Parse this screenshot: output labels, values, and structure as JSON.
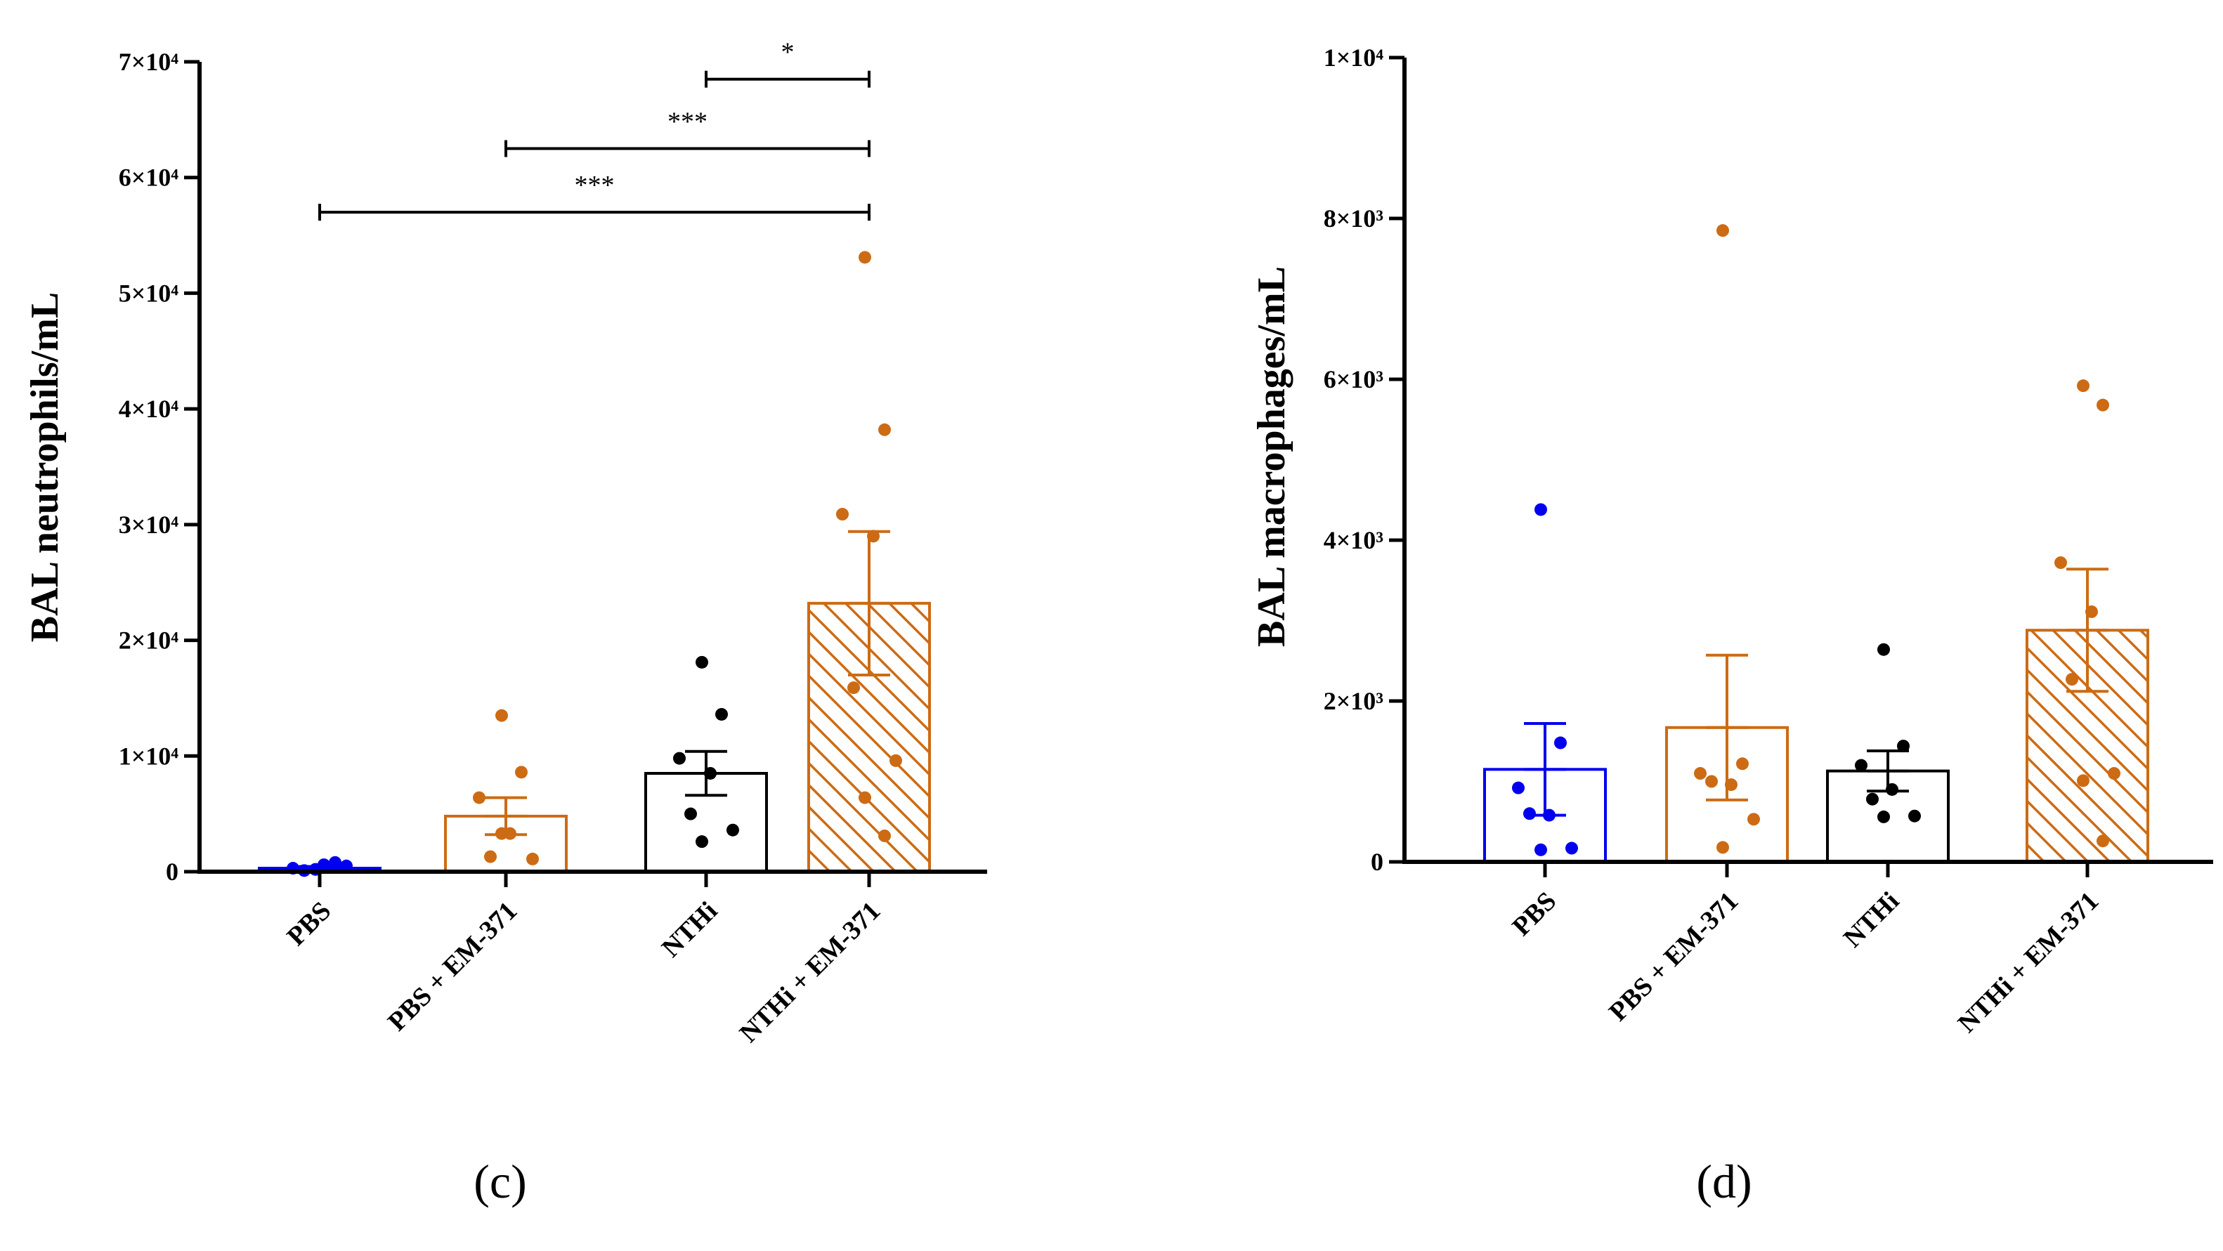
{
  "colors": {
    "blue": "#0000ee",
    "orange": "#cc6b14",
    "black": "#000000"
  },
  "chart_data": [
    {
      "type": "bar",
      "panel": "(c)",
      "ylabel": "BAL neutrophils/mL",
      "ylim": [
        0,
        70000
      ],
      "yticks": [
        {
          "value": 0,
          "label": "0"
        },
        {
          "value": 10000,
          "label": "1×10⁴"
        },
        {
          "value": 20000,
          "label": "2×10⁴"
        },
        {
          "value": 30000,
          "label": "3×10⁴"
        },
        {
          "value": 40000,
          "label": "4×10⁴"
        },
        {
          "value": 50000,
          "label": "5×10⁴"
        },
        {
          "value": 60000,
          "label": "6×10⁴"
        },
        {
          "value": 70000,
          "label": "7×10⁴"
        }
      ],
      "categories": [
        "PBS",
        "PBS + EM-371",
        "NTHi",
        "NTHi + EM-371"
      ],
      "means": [
        300,
        4800,
        8500,
        23200
      ],
      "sem": [
        150,
        1600,
        1900,
        6200
      ],
      "bar_colors": [
        "#0000ee",
        "#cc6b14",
        "#000000",
        "#cc6b14"
      ],
      "bar_patterns": [
        "none",
        "none",
        "none",
        "hatch"
      ],
      "points": [
        [
          200,
          800,
          300,
          600,
          100,
          500,
          200
        ],
        [
          13500,
          8600,
          6400,
          3300,
          1300,
          1100,
          3300
        ],
        [
          18100,
          13600,
          9800,
          8500,
          5000,
          3600,
          2600
        ],
        [
          53100,
          38200,
          30900,
          29000,
          15900,
          9600,
          6400,
          3100
        ]
      ],
      "significance": [
        {
          "from": 2,
          "to": 3,
          "label": "*",
          "y": 68500
        },
        {
          "from": 1,
          "to": 3,
          "label": "***",
          "y": 62500
        },
        {
          "from": 0,
          "to": 3,
          "label": "***",
          "y": 57000
        }
      ]
    },
    {
      "type": "bar",
      "panel": "(d)",
      "ylabel": "BAL macrophages/mL",
      "ylim": [
        0,
        10000
      ],
      "yticks": [
        {
          "value": 0,
          "label": "0"
        },
        {
          "value": 2000,
          "label": "2×10³"
        },
        {
          "value": 4000,
          "label": "4×10³"
        },
        {
          "value": 6000,
          "label": "6×10³"
        },
        {
          "value": 8000,
          "label": "8×10³"
        },
        {
          "value": 10000,
          "label": "1×10⁴"
        }
      ],
      "categories": [
        "PBS",
        "PBS + EM-371",
        "NTHi",
        "NTHi + EM-371"
      ],
      "means": [
        1150,
        1670,
        1130,
        2880
      ],
      "sem": [
        570,
        900,
        250,
        760
      ],
      "bar_colors": [
        "#0000ee",
        "#cc6b14",
        "#000000",
        "#cc6b14"
      ],
      "bar_patterns": [
        "none",
        "none",
        "none",
        "hatch"
      ],
      "points": [
        [
          4380,
          1480,
          920,
          580,
          600,
          170,
          150
        ],
        [
          7850,
          1220,
          1100,
          960,
          1000,
          530,
          180
        ],
        [
          2640,
          1440,
          1200,
          900,
          780,
          570,
          560
        ],
        [
          5920,
          5680,
          3720,
          3110,
          2270,
          1100,
          1010,
          260
        ]
      ],
      "significance": []
    }
  ]
}
